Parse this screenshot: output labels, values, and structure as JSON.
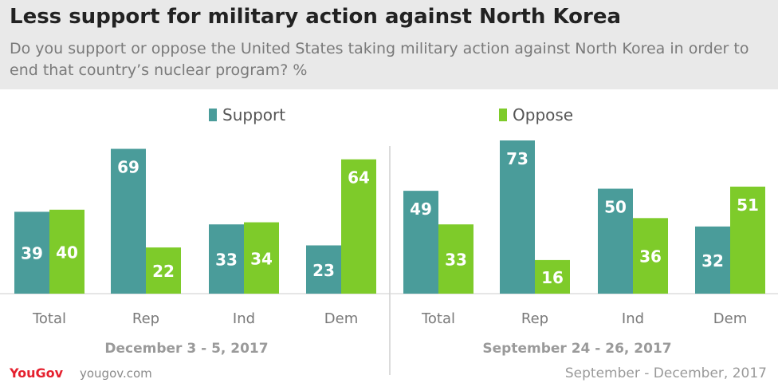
{
  "header": {
    "title": "Less support for military action against North Korea",
    "subtitle": "Do you support or oppose the United States taking military action against North Korea in order to end that country’s nuclear program? %"
  },
  "legend": {
    "support": "Support",
    "oppose": "Oppose"
  },
  "colors": {
    "support": "#4a9c9a",
    "oppose": "#7ecb2a",
    "header_bg": "#e9e9e9",
    "brand": "#e5202e"
  },
  "footer": {
    "logo": "YouGov",
    "site": "yougov.com",
    "date_range": "September - December, 2017"
  },
  "chart_data": [
    {
      "type": "bar",
      "title": "December 3 - 5, 2017",
      "categories": [
        "Total",
        "Rep",
        "Ind",
        "Dem"
      ],
      "series": [
        {
          "name": "Support",
          "values": [
            39,
            69,
            33,
            23
          ]
        },
        {
          "name": "Oppose",
          "values": [
            40,
            22,
            34,
            64
          ]
        }
      ],
      "grid": false,
      "legend_position": "top"
    },
    {
      "type": "bar",
      "title": "September 24 - 26, 2017",
      "categories": [
        "Total",
        "Rep",
        "Ind",
        "Dem"
      ],
      "series": [
        {
          "name": "Support",
          "values": [
            49,
            73,
            50,
            32
          ]
        },
        {
          "name": "Oppose",
          "values": [
            33,
            16,
            36,
            51
          ]
        }
      ],
      "grid": false,
      "legend_position": "top"
    }
  ]
}
